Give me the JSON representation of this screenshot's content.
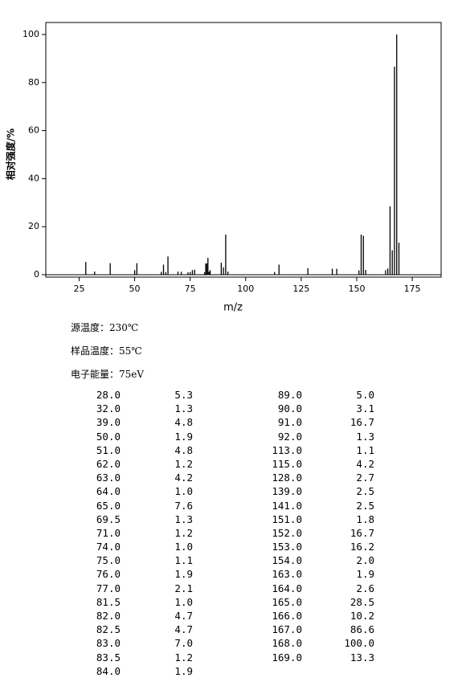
{
  "chart_data": {
    "type": "bar",
    "xlabel": "m/z",
    "ylabel": "相对强度/%",
    "x": [
      28,
      32,
      39,
      50,
      51,
      62,
      63,
      64,
      65,
      69.5,
      71,
      74,
      75,
      76,
      77,
      81.5,
      82,
      82.5,
      83,
      83.5,
      84,
      89,
      90,
      91,
      92,
      113,
      115,
      128,
      139,
      141,
      151,
      152,
      153,
      154,
      163,
      164,
      165,
      166,
      167,
      168,
      169
    ],
    "values": [
      5.3,
      1.3,
      4.8,
      1.9,
      4.8,
      1.2,
      4.2,
      1.0,
      7.6,
      1.3,
      1.2,
      1.0,
      1.1,
      1.9,
      2.1,
      1.0,
      4.7,
      4.7,
      7.0,
      1.2,
      1.9,
      5.0,
      3.1,
      16.7,
      1.3,
      1.1,
      4.2,
      2.7,
      2.5,
      2.5,
      1.8,
      16.7,
      16.2,
      2.0,
      1.9,
      2.6,
      28.5,
      10.2,
      86.6,
      100,
      13.3
    ],
    "color": "#000000",
    "xlim": [
      10,
      188
    ],
    "xticks": [
      25,
      50,
      75,
      100,
      125,
      150,
      175
    ],
    "ylim": [
      -1,
      105
    ],
    "yticks": [
      0,
      20,
      40,
      60,
      80,
      100
    ]
  },
  "conditions": [
    "源温度：230℃",
    "样品温度：55℃",
    "电子能量：75eV"
  ],
  "table": {
    "rows": [
      [
        "28.0",
        "5.3",
        "89.0",
        "5.0"
      ],
      [
        "32.0",
        "1.3",
        "90.0",
        "3.1"
      ],
      [
        "39.0",
        "4.8",
        "91.0",
        "16.7"
      ],
      [
        "50.0",
        "1.9",
        "92.0",
        "1.3"
      ],
      [
        "51.0",
        "4.8",
        "113.0",
        "1.1"
      ],
      [
        "62.0",
        "1.2",
        "115.0",
        "4.2"
      ],
      [
        "63.0",
        "4.2",
        "128.0",
        "2.7"
      ],
      [
        "64.0",
        "1.0",
        "139.0",
        "2.5"
      ],
      [
        "65.0",
        "7.6",
        "141.0",
        "2.5"
      ],
      [
        "69.5",
        "1.3",
        "151.0",
        "1.8"
      ],
      [
        "71.0",
        "1.2",
        "152.0",
        "16.7"
      ],
      [
        "74.0",
        "1.0",
        "153.0",
        "16.2"
      ],
      [
        "75.0",
        "1.1",
        "154.0",
        "2.0"
      ],
      [
        "76.0",
        "1.9",
        "163.0",
        "1.9"
      ],
      [
        "77.0",
        "2.1",
        "164.0",
        "2.6"
      ],
      [
        "81.5",
        "1.0",
        "165.0",
        "28.5"
      ],
      [
        "82.0",
        "4.7",
        "166.0",
        "10.2"
      ],
      [
        "82.5",
        "4.7",
        "167.0",
        "86.6"
      ],
      [
        "83.0",
        "7.0",
        "168.0",
        "100.0"
      ],
      [
        "83.5",
        "1.2",
        "169.0",
        "13.3"
      ],
      [
        "84.0",
        "1.9"
      ]
    ]
  }
}
